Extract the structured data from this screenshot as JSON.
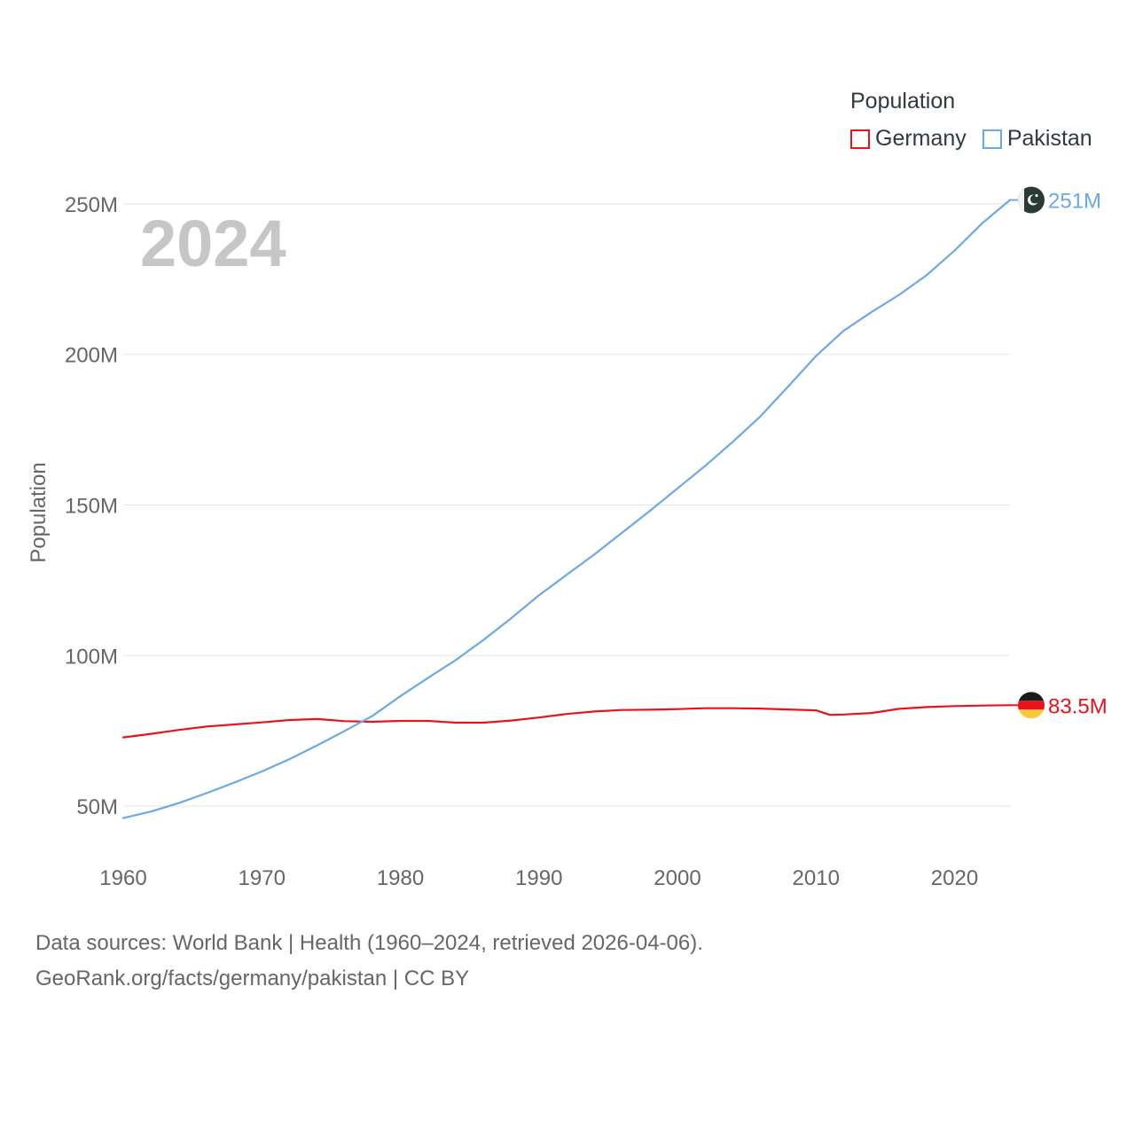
{
  "legend": {
    "title": "Population",
    "items": [
      {
        "name": "Germany",
        "color": "#e8141c"
      },
      {
        "name": "Pakistan",
        "color": "#6aa9e6"
      }
    ]
  },
  "year_label": "2024",
  "source": {
    "line1": "Data sources: World Bank | Health (1960–2024, retrieved 2026-04-06).",
    "line2": "GeoRank.org/facts/germany/pakistan | CC BY"
  },
  "chart_data": {
    "type": "line",
    "title": "",
    "xlabel": "",
    "ylabel": "Population",
    "xlim": [
      1960,
      2024
    ],
    "ylim": [
      35,
      260
    ],
    "x_ticks": [
      1960,
      1970,
      1980,
      1990,
      2000,
      2010,
      2020
    ],
    "y_ticks": [
      50,
      100,
      150,
      200,
      250
    ],
    "y_tick_labels": [
      "50M",
      "100M",
      "150M",
      "200M",
      "250M"
    ],
    "grid": true,
    "legend_position": "top-right",
    "series": [
      {
        "name": "Germany",
        "color": "#e8141c",
        "end_label": "83.5M",
        "x": [
          1960,
          1962,
          1964,
          1966,
          1968,
          1970,
          1972,
          1974,
          1976,
          1978,
          1980,
          1982,
          1984,
          1986,
          1988,
          1990,
          1992,
          1994,
          1996,
          1998,
          2000,
          2002,
          2004,
          2006,
          2008,
          2010,
          2011,
          2012,
          2014,
          2016,
          2018,
          2020,
          2022,
          2024
        ],
        "values": [
          72.8,
          74.0,
          75.3,
          76.4,
          77.1,
          77.8,
          78.6,
          78.9,
          78.2,
          78.0,
          78.3,
          78.3,
          77.7,
          77.7,
          78.4,
          79.4,
          80.6,
          81.4,
          81.9,
          82.0,
          82.2,
          82.5,
          82.5,
          82.4,
          82.1,
          81.8,
          80.3,
          80.4,
          80.9,
          82.3,
          82.9,
          83.2,
          83.4,
          83.5
        ]
      },
      {
        "name": "Pakistan",
        "color": "#6aa9e6",
        "end_label": "251M",
        "x": [
          1960,
          1962,
          1964,
          1966,
          1968,
          1970,
          1972,
          1974,
          1976,
          1978,
          1980,
          1982,
          1984,
          1986,
          1988,
          1990,
          1992,
          1994,
          1996,
          1998,
          2000,
          2002,
          2004,
          2006,
          2008,
          2010,
          2012,
          2014,
          2016,
          2018,
          2020,
          2022,
          2024
        ],
        "values": [
          46.0,
          48.2,
          51.0,
          54.3,
          57.8,
          61.5,
          65.6,
          70.2,
          75.0,
          80.0,
          86.5,
          92.6,
          98.5,
          105.2,
          112.4,
          120.0,
          126.8,
          133.6,
          140.8,
          148.0,
          155.5,
          163.0,
          171.0,
          179.5,
          189.4,
          199.5,
          207.9,
          214.1,
          219.8,
          226.4,
          234.5,
          243.6,
          251.3
        ]
      }
    ]
  }
}
